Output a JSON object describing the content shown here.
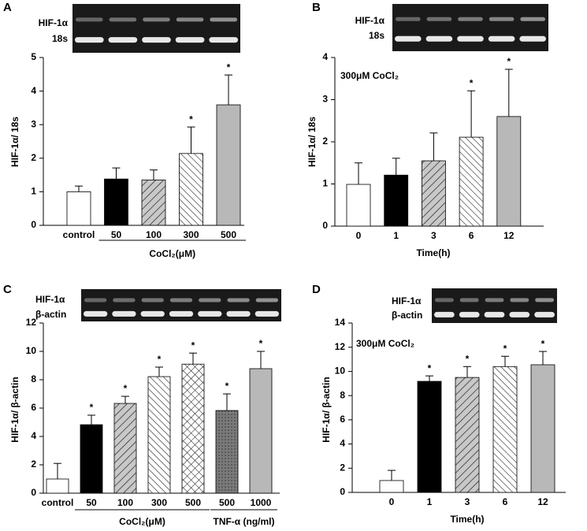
{
  "chart_data": [
    {
      "type": "bar",
      "label": "A",
      "blot_labels": [
        "HIF-1α",
        "18s"
      ],
      "ylabel": "HIF-1α/ 18s",
      "categories": [
        "control",
        "50",
        "100",
        "300",
        "500"
      ],
      "values": [
        1.0,
        1.38,
        1.35,
        2.14,
        3.59
      ],
      "errors": [
        0.17,
        0.33,
        0.3,
        0.79,
        0.89
      ],
      "significance": [
        null,
        null,
        null,
        "*",
        "*"
      ],
      "fills": [
        "white",
        "black",
        "hatch",
        "backhatch",
        "gray"
      ],
      "groups": [
        {
          "label": "CoCl₂(μM)",
          "from": 1,
          "to": 4
        }
      ],
      "ylim": [
        0,
        5
      ],
      "yticks": [
        0,
        1,
        2,
        3,
        4,
        5
      ]
    },
    {
      "type": "bar",
      "label": "B",
      "blot_labels": [
        "HIF-1α",
        "18s"
      ],
      "ylabel": "HIF-1α/ 18s",
      "annotation": "300μM CoCl₂",
      "xlabel": "Time(h)",
      "categories": [
        "0",
        "1",
        "3",
        "6",
        "12"
      ],
      "values": [
        0.99,
        1.21,
        1.55,
        2.11,
        2.6
      ],
      "errors": [
        0.51,
        0.4,
        0.66,
        1.1,
        1.12
      ],
      "significance": [
        null,
        null,
        null,
        "*",
        "*"
      ],
      "fills": [
        "white",
        "black",
        "hatch",
        "backhatch",
        "gray"
      ],
      "ylim": [
        0,
        4
      ],
      "yticks": [
        0,
        1,
        2,
        3,
        4
      ]
    },
    {
      "type": "bar",
      "label": "C",
      "blot_labels": [
        "HIF-1α",
        "β-actin"
      ],
      "ylabel": "HIF-1α/ β-actin",
      "categories": [
        "control",
        "50",
        "100",
        "300",
        "500",
        "500",
        "1000"
      ],
      "values": [
        1.0,
        4.83,
        6.33,
        8.22,
        9.1,
        5.83,
        8.78
      ],
      "errors": [
        1.1,
        0.67,
        0.5,
        0.67,
        0.78,
        1.17,
        1.22
      ],
      "significance": [
        null,
        "*",
        "*",
        "*",
        "*",
        "*",
        "*"
      ],
      "fills": [
        "white",
        "black",
        "hatch",
        "backhatch",
        "crosshatch",
        "dotted",
        "gray"
      ],
      "groups": [
        {
          "label": "CoCl₂(μM)",
          "from": 1,
          "to": 4
        },
        {
          "label": "TNF-α (ng/ml)",
          "from": 5,
          "to": 6
        }
      ],
      "ylim": [
        0,
        12
      ],
      "yticks": [
        0,
        2,
        4,
        6,
        8,
        10,
        12
      ]
    },
    {
      "type": "bar",
      "label": "D",
      "blot_labels": [
        "HIF-1α",
        "β-actin"
      ],
      "ylabel": "HIF-1α/ β-actin",
      "annotation": "300μM CoCl₂",
      "xlabel": "Time(h)",
      "categories": [
        "0",
        "1",
        "3",
        "6",
        "12"
      ],
      "values": [
        0.98,
        9.18,
        9.5,
        10.4,
        10.55
      ],
      "errors": [
        0.84,
        0.45,
        0.9,
        0.85,
        1.1
      ],
      "significance": [
        null,
        "*",
        "*",
        "*",
        "*"
      ],
      "fills": [
        "white",
        "black",
        "hatch",
        "backhatch",
        "gray"
      ],
      "ylim": [
        0,
        14
      ],
      "yticks": [
        0,
        2,
        4,
        6,
        8,
        10,
        12,
        14
      ]
    }
  ]
}
